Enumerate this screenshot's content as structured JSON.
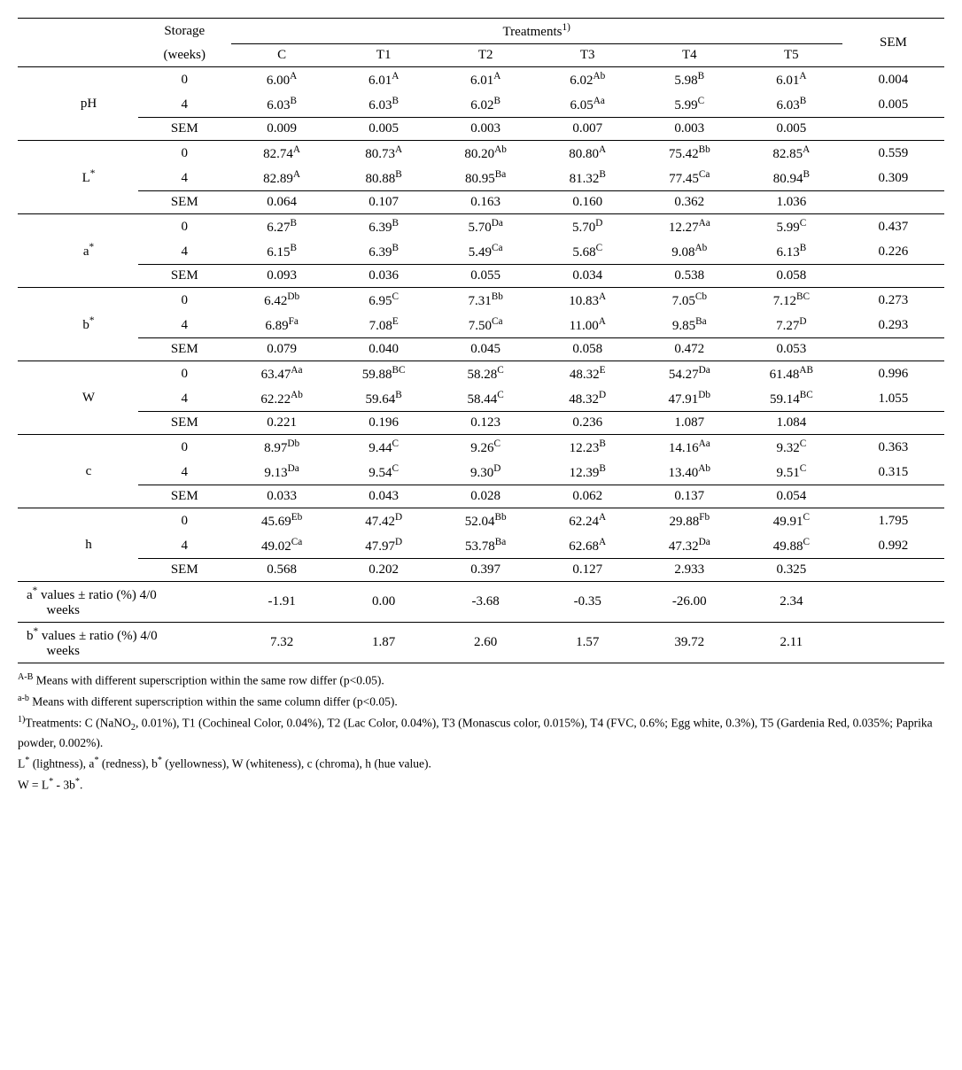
{
  "header": {
    "storage": "Storage",
    "storage2": "(weeks)",
    "treatments": "Treatments",
    "treatments_sup": "1)",
    "sem": "SEM",
    "cols": [
      "C",
      "T1",
      "T2",
      "T3",
      "T4",
      "T5"
    ]
  },
  "groups": [
    {
      "label": "pH",
      "label_html": "pH",
      "rows": [
        {
          "w": "0",
          "v": [
            [
              "6.00",
              "A"
            ],
            [
              "6.01",
              "A"
            ],
            [
              "6.01",
              "A"
            ],
            [
              "6.02",
              "Ab"
            ],
            [
              "5.98",
              "B"
            ],
            [
              "6.01",
              "A"
            ]
          ],
          "sem": "0.004"
        },
        {
          "w": "4",
          "v": [
            [
              "6.03",
              "B"
            ],
            [
              "6.03",
              "B"
            ],
            [
              "6.02",
              "B"
            ],
            [
              "6.05",
              "Aa"
            ],
            [
              "5.99",
              "C"
            ],
            [
              "6.03",
              "B"
            ]
          ],
          "sem": "0.005"
        },
        {
          "w": "SEM",
          "v": [
            [
              "0.009",
              ""
            ],
            [
              "0.005",
              ""
            ],
            [
              "0.003",
              ""
            ],
            [
              "0.007",
              ""
            ],
            [
              "0.003",
              ""
            ],
            [
              "0.005",
              ""
            ]
          ],
          "sem": ""
        }
      ]
    },
    {
      "label": "L*",
      "label_html": "L<sup>*</sup>",
      "rows": [
        {
          "w": "0",
          "v": [
            [
              "82.74",
              "A"
            ],
            [
              "80.73",
              "A"
            ],
            [
              "80.20",
              "Ab"
            ],
            [
              "80.80",
              "A"
            ],
            [
              "75.42",
              "Bb"
            ],
            [
              "82.85",
              "A"
            ]
          ],
          "sem": "0.559"
        },
        {
          "w": "4",
          "v": [
            [
              "82.89",
              "A"
            ],
            [
              "80.88",
              "B"
            ],
            [
              "80.95",
              "Ba"
            ],
            [
              "81.32",
              "B"
            ],
            [
              "77.45",
              "Ca"
            ],
            [
              "80.94",
              "B"
            ]
          ],
          "sem": "0.309"
        },
        {
          "w": "SEM",
          "v": [
            [
              "0.064",
              ""
            ],
            [
              "0.107",
              ""
            ],
            [
              "0.163",
              ""
            ],
            [
              "0.160",
              ""
            ],
            [
              "0.362",
              ""
            ],
            [
              "1.036",
              ""
            ]
          ],
          "sem": ""
        }
      ]
    },
    {
      "label": "a*",
      "label_html": "a<sup>*</sup>",
      "rows": [
        {
          "w": "0",
          "v": [
            [
              "6.27",
              "B"
            ],
            [
              "6.39",
              "B"
            ],
            [
              "5.70",
              "Da"
            ],
            [
              "5.70",
              "D"
            ],
            [
              "12.27",
              "Aa"
            ],
            [
              "5.99",
              "C"
            ]
          ],
          "sem": "0.437"
        },
        {
          "w": "4",
          "v": [
            [
              "6.15",
              "B"
            ],
            [
              "6.39",
              "B"
            ],
            [
              "5.49",
              "Ca"
            ],
            [
              "5.68",
              "C"
            ],
            [
              "9.08",
              "Ab"
            ],
            [
              "6.13",
              "B"
            ]
          ],
          "sem": "0.226"
        },
        {
          "w": "SEM",
          "v": [
            [
              "0.093",
              ""
            ],
            [
              "0.036",
              ""
            ],
            [
              "0.055",
              ""
            ],
            [
              "0.034",
              ""
            ],
            [
              "0.538",
              ""
            ],
            [
              "0.058",
              ""
            ]
          ],
          "sem": ""
        }
      ]
    },
    {
      "label": "b*",
      "label_html": "b<sup>*</sup>",
      "rows": [
        {
          "w": "0",
          "v": [
            [
              "6.42",
              "Db"
            ],
            [
              "6.95",
              "C"
            ],
            [
              "7.31",
              "Bb"
            ],
            [
              "10.83",
              "A"
            ],
            [
              "7.05",
              "Cb"
            ],
            [
              "7.12",
              "BC"
            ]
          ],
          "sem": "0.273"
        },
        {
          "w": "4",
          "v": [
            [
              "6.89",
              "Fa"
            ],
            [
              "7.08",
              "E"
            ],
            [
              "7.50",
              "Ca"
            ],
            [
              "11.00",
              "A"
            ],
            [
              "9.85",
              "Ba"
            ],
            [
              "7.27",
              "D"
            ]
          ],
          "sem": "0.293"
        },
        {
          "w": "SEM",
          "v": [
            [
              "0.079",
              ""
            ],
            [
              "0.040",
              ""
            ],
            [
              "0.045",
              ""
            ],
            [
              "0.058",
              ""
            ],
            [
              "0.472",
              ""
            ],
            [
              "0.053",
              ""
            ]
          ],
          "sem": ""
        }
      ]
    },
    {
      "label": "W",
      "label_html": "W",
      "rows": [
        {
          "w": "0",
          "v": [
            [
              "63.47",
              "Aa"
            ],
            [
              "59.88",
              "BC"
            ],
            [
              "58.28",
              "C"
            ],
            [
              "48.32",
              "E"
            ],
            [
              "54.27",
              "Da"
            ],
            [
              "61.48",
              "AB"
            ]
          ],
          "sem": "0.996"
        },
        {
          "w": "4",
          "v": [
            [
              "62.22",
              "Ab"
            ],
            [
              "59.64",
              "B"
            ],
            [
              "58.44",
              "C"
            ],
            [
              "48.32",
              "D"
            ],
            [
              "47.91",
              "Db"
            ],
            [
              "59.14",
              "BC"
            ]
          ],
          "sem": "1.055"
        },
        {
          "w": "SEM",
          "v": [
            [
              "0.221",
              ""
            ],
            [
              "0.196",
              ""
            ],
            [
              "0.123",
              ""
            ],
            [
              "0.236",
              ""
            ],
            [
              "1.087",
              ""
            ],
            [
              "1.084",
              ""
            ]
          ],
          "sem": ""
        }
      ]
    },
    {
      "label": "c",
      "label_html": "c",
      "rows": [
        {
          "w": "0",
          "v": [
            [
              "8.97",
              "Db"
            ],
            [
              "9.44",
              "C"
            ],
            [
              "9.26",
              "C"
            ],
            [
              "12.23",
              "B"
            ],
            [
              "14.16",
              "Aa"
            ],
            [
              "9.32",
              "C"
            ]
          ],
          "sem": "0.363"
        },
        {
          "w": "4",
          "v": [
            [
              "9.13",
              "Da"
            ],
            [
              "9.54",
              "C"
            ],
            [
              "9.30",
              "D"
            ],
            [
              "12.39",
              "B"
            ],
            [
              "13.40",
              "Ab"
            ],
            [
              "9.51",
              "C"
            ]
          ],
          "sem": "0.315"
        },
        {
          "w": "SEM",
          "v": [
            [
              "0.033",
              ""
            ],
            [
              "0.043",
              ""
            ],
            [
              "0.028",
              ""
            ],
            [
              "0.062",
              ""
            ],
            [
              "0.137",
              ""
            ],
            [
              "0.054",
              ""
            ]
          ],
          "sem": ""
        }
      ]
    },
    {
      "label": "h",
      "label_html": "h",
      "rows": [
        {
          "w": "0",
          "v": [
            [
              "45.69",
              "Eb"
            ],
            [
              "47.42",
              "D"
            ],
            [
              "52.04",
              "Bb"
            ],
            [
              "62.24",
              "A"
            ],
            [
              "29.88",
              "Fb"
            ],
            [
              "49.91",
              "C"
            ]
          ],
          "sem": "1.795"
        },
        {
          "w": "4",
          "v": [
            [
              "49.02",
              "Ca"
            ],
            [
              "47.97",
              "D"
            ],
            [
              "53.78",
              "Ba"
            ],
            [
              "62.68",
              "A"
            ],
            [
              "47.32",
              "Da"
            ],
            [
              "49.88",
              "C"
            ]
          ],
          "sem": "0.992"
        },
        {
          "w": "SEM",
          "v": [
            [
              "0.568",
              ""
            ],
            [
              "0.202",
              ""
            ],
            [
              "0.397",
              ""
            ],
            [
              "0.127",
              ""
            ],
            [
              "2.933",
              ""
            ],
            [
              "0.325",
              ""
            ]
          ],
          "sem": ""
        }
      ]
    }
  ],
  "ratios": [
    {
      "label_html": "a<sup>*</sup> values ± ratio (%) 4/0<br>&nbsp;&nbsp;&nbsp;&nbsp;&nbsp;&nbsp;weeks",
      "v": [
        "-1.91",
        "0.00",
        "-3.68",
        "-0.35",
        "-26.00",
        "2.34"
      ]
    },
    {
      "label_html": "b<sup>*</sup> values ± ratio (%) 4/0<br>&nbsp;&nbsp;&nbsp;&nbsp;&nbsp;&nbsp;weeks",
      "v": [
        "7.32",
        "1.87",
        "2.60",
        "1.57",
        "39.72",
        "2.11"
      ]
    }
  ],
  "notes": [
    "<sup>A-B</sup> Means with different superscription within the same row differ (p&lt;0.05).",
    "<sup>a-b</sup> Means with different superscription within the same column differ (p&lt;0.05).",
    "<sup>1)</sup>Treatments: C (NaNO<sub>2</sub>, 0.01%), T1 (Cochineal Color, 0.04%), T2 (Lac Color, 0.04%), T3 (Monascus color, 0.015%), T4 (FVC, 0.6%; Egg white, 0.3%), T5 (Gardenia Red, 0.035%; Paprika powder, 0.002%).",
    "L<sup>*</sup> (lightness), a<sup>*</sup> (redness), b<sup>*</sup> (yellowness), W (whiteness), c (chroma), h (hue value).",
    "W = L<sup>*</sup> - 3b<sup>*</sup>."
  ]
}
